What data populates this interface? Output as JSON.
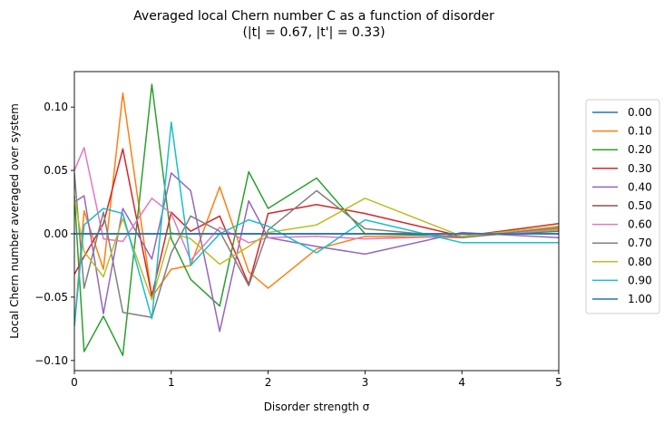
{
  "chart_data": {
    "type": "line",
    "title": "Averaged local Chern number C as a function of disorder",
    "subtitle": "(|t| = 0.67, |t'| = 0.33)",
    "xlabel": "Disorder strength σ",
    "ylabel": "Local Chern number averaged over system",
    "xlim": [
      0,
      5
    ],
    "ylim": [
      -0.108,
      0.128
    ],
    "xticks": [
      0,
      1,
      2,
      3,
      4,
      5
    ],
    "xtick_labels": [
      "0",
      "1",
      "2",
      "3",
      "4",
      "5"
    ],
    "yticks": [
      -0.1,
      -0.05,
      0.0,
      0.05,
      0.1
    ],
    "ytick_labels": [
      "−0.10",
      "−0.05",
      "0.00",
      "0.05",
      "0.10"
    ],
    "grid": false,
    "legend_position": "right-outside",
    "x": [
      0,
      0.1,
      0.3,
      0.5,
      0.8,
      1.0,
      1.2,
      1.5,
      1.8,
      2.0,
      2.5,
      3.0,
      4.0,
      5.0
    ],
    "series": [
      {
        "name": "0.00",
        "color": "#1f77b4",
        "values": [
          0.0,
          0.0,
          0.0,
          0.0,
          0.0,
          0.0,
          0.0,
          0.0,
          0.0,
          0.0,
          0.0,
          0.0,
          0.0,
          0.0
        ]
      },
      {
        "name": "0.10",
        "color": "#ff7f0e",
        "values": [
          -0.072,
          0.018,
          -0.028,
          0.111,
          -0.05,
          -0.028,
          -0.025,
          0.037,
          -0.03,
          -0.043,
          -0.012,
          -0.002,
          -0.003,
          0.004
        ]
      },
      {
        "name": "0.20",
        "color": "#2ca02c",
        "values": [
          0.03,
          -0.093,
          -0.065,
          -0.096,
          0.118,
          -0.004,
          -0.036,
          -0.057,
          0.049,
          0.02,
          0.044,
          0.0,
          -0.002,
          0.002
        ]
      },
      {
        "name": "0.30",
        "color": "#d62728",
        "values": [
          -0.032,
          -0.018,
          0.008,
          0.067,
          -0.049,
          0.017,
          0.002,
          0.014,
          -0.04,
          0.016,
          0.023,
          0.016,
          -0.002,
          0.008
        ]
      },
      {
        "name": "0.40",
        "color": "#9467bd",
        "values": [
          0.025,
          0.03,
          -0.063,
          0.02,
          -0.02,
          0.048,
          0.034,
          -0.077,
          0.026,
          -0.003,
          -0.01,
          -0.016,
          0.001,
          -0.003
        ]
      },
      {
        "name": "0.50",
        "color": "#8c564b",
        "values": [
          0.0,
          0.0,
          0.0,
          0.0,
          0.0,
          0.0,
          0.0,
          0.0,
          0.0,
          0.0,
          0.0,
          0.0,
          0.0,
          0.0
        ]
      },
      {
        "name": "0.60",
        "color": "#e377c2",
        "values": [
          0.05,
          0.068,
          -0.004,
          -0.006,
          0.028,
          0.016,
          -0.021,
          0.005,
          -0.007,
          -0.003,
          -0.002,
          -0.004,
          -0.002,
          0.003
        ]
      },
      {
        "name": "0.70",
        "color": "#7f7f7f",
        "values": [
          0.048,
          -0.043,
          0.017,
          -0.062,
          -0.066,
          -0.015,
          0.014,
          0.002,
          -0.041,
          0.003,
          0.034,
          0.004,
          -0.003,
          0.005
        ]
      },
      {
        "name": "0.80",
        "color": "#bcbd22",
        "values": [
          0.028,
          -0.014,
          -0.034,
          0.012,
          -0.052,
          0.001,
          -0.004,
          -0.024,
          -0.01,
          0.001,
          0.007,
          0.028,
          -0.002,
          0.006
        ]
      },
      {
        "name": "0.90",
        "color": "#17becf",
        "values": [
          -0.073,
          0.007,
          0.02,
          0.016,
          -0.067,
          0.088,
          -0.025,
          0.0,
          0.011,
          0.006,
          -0.015,
          0.011,
          -0.007,
          -0.007
        ]
      },
      {
        "name": "1.00",
        "color": "#1f77b4",
        "values": [
          0.0,
          0.0,
          0.0,
          0.0,
          0.0,
          0.0,
          0.0,
          0.0,
          0.0,
          0.0,
          0.0,
          0.0,
          0.0,
          0.0
        ]
      }
    ]
  }
}
